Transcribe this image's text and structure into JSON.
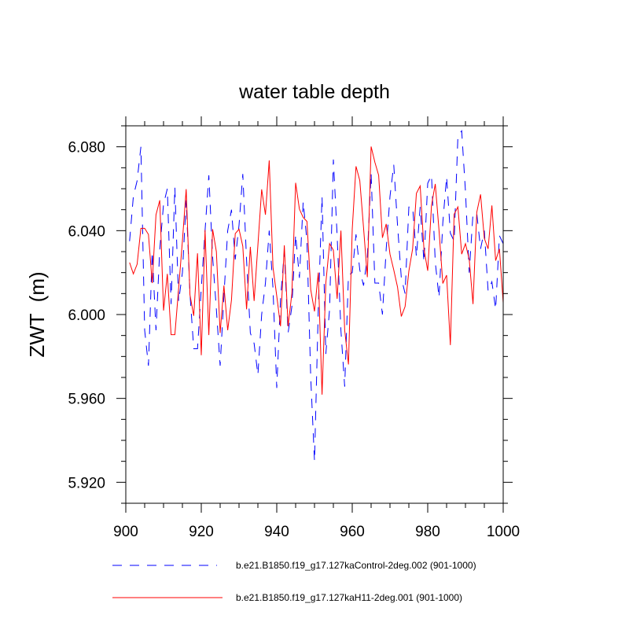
{
  "chart_data": {
    "type": "line",
    "title": "water table depth",
    "xlabel": "",
    "ylabel": "ZWT  (m)",
    "xlim": [
      900,
      1000
    ],
    "ylim": [
      5.91,
      6.09
    ],
    "x_ticks": [
      900,
      920,
      940,
      960,
      980,
      1000
    ],
    "x_tick_labels": [
      "900",
      "920",
      "940",
      "960",
      "980",
      "1000"
    ],
    "y_ticks": [
      5.92,
      5.96,
      6.0,
      6.04,
      6.08
    ],
    "y_tick_labels": [
      "5.920",
      "5.960",
      "6.000",
      "6.040",
      "6.080"
    ],
    "x_start": 901,
    "legend_placement": "bottom",
    "grid": false,
    "series": [
      {
        "name": "b.e21.B1850.f19_g17.127kaControl-2deg.002 (901-1000)",
        "color": "#0000ff",
        "style": "dashed",
        "values": [
          6.035,
          6.0563,
          6.0638,
          6.08,
          5.9925,
          5.9756,
          6.03,
          5.9925,
          6.031,
          6.0526,
          6.06,
          6.005,
          6.0607,
          6.0063,
          6.02,
          6.0545,
          6.01,
          5.9837,
          5.9837,
          6.0125,
          6.04,
          6.0664,
          6.0275,
          6.0025,
          5.9756,
          6.0088,
          6.04,
          6.05,
          6.0263,
          6.0426,
          6.067,
          6.026,
          5.9912,
          5.9862,
          5.9712,
          6.0,
          6.015,
          6.04,
          6.0125,
          5.965,
          6.0075,
          6.03,
          5.9912,
          6.0038,
          6.0382,
          6.0175,
          6.0538,
          6.035,
          5.97,
          5.93,
          6.0025,
          6.0563,
          5.9812,
          6.0025,
          6.0739,
          6.0376,
          5.9925,
          5.9656,
          6.0188,
          6.02,
          6.0382,
          6.0213,
          6.0138,
          6.0275,
          6.0676,
          6.015,
          6.015,
          6.0,
          6.0313,
          6.0563,
          6.0714,
          6.0426,
          6.0175,
          6.01,
          6.0513,
          6.0513,
          6.0275,
          6.0513,
          6.025,
          6.0626,
          6.0664,
          6.025,
          6.0081,
          6.0438,
          6.0657,
          6.0388,
          6.035,
          6.0851,
          6.0876,
          6.0588,
          6.02,
          6.0482,
          6.0482,
          6.0313,
          6.04,
          6.0113,
          6.0156,
          6.0025,
          6.0376,
          6.0338
        ]
      },
      {
        "name": "b.e21.B1850.f19_g17.127kaH11-2deg.001 (901-1000)",
        "color": "#ff0000",
        "style": "solid",
        "values": [
          6.0248,
          6.0194,
          6.024,
          6.0411,
          6.0411,
          6.0382,
          6.015,
          6.0476,
          6.0545,
          6.0019,
          6.0194,
          5.9904,
          5.9904,
          6.0125,
          6.0351,
          6.0598,
          6.0094,
          5.9994,
          6.0292,
          5.9806,
          6.0403,
          5.9902,
          6.0407,
          6.03,
          5.9912,
          6.0138,
          5.9925,
          6.0069,
          6.0386,
          6.0407,
          6.0326,
          6.0025,
          6.0323,
          6.0065,
          6.033,
          6.0597,
          6.0476,
          6.0735,
          6.0225,
          6.0088,
          5.9944,
          6.033,
          5.9944,
          6.01,
          6.0628,
          6.0503,
          6.0463,
          6.0444,
          6.0119,
          6.0015,
          6.02,
          5.9618,
          6.015,
          6.0338,
          6.0307,
          6.0075,
          6.04,
          5.9925,
          5.9762,
          6.0407,
          6.0707,
          6.0639,
          6.0413,
          6.0178,
          6.0801,
          6.0726,
          6.0664,
          6.0366,
          6.0432,
          6.0288,
          6.0213,
          6.0131,
          5.9991,
          6.0038,
          6.0207,
          6.0313,
          6.0578,
          6.0613,
          6.0313,
          6.0209,
          6.052,
          6.0623,
          6.04,
          6.0148,
          6.0188,
          5.9854,
          6.0478,
          6.0513,
          6.0288,
          6.0338,
          6.0263,
          6.005,
          6.0488,
          6.0573,
          6.0363,
          6.0313,
          6.052,
          6.0257,
          6.0313,
          6.0056
        ]
      }
    ]
  }
}
